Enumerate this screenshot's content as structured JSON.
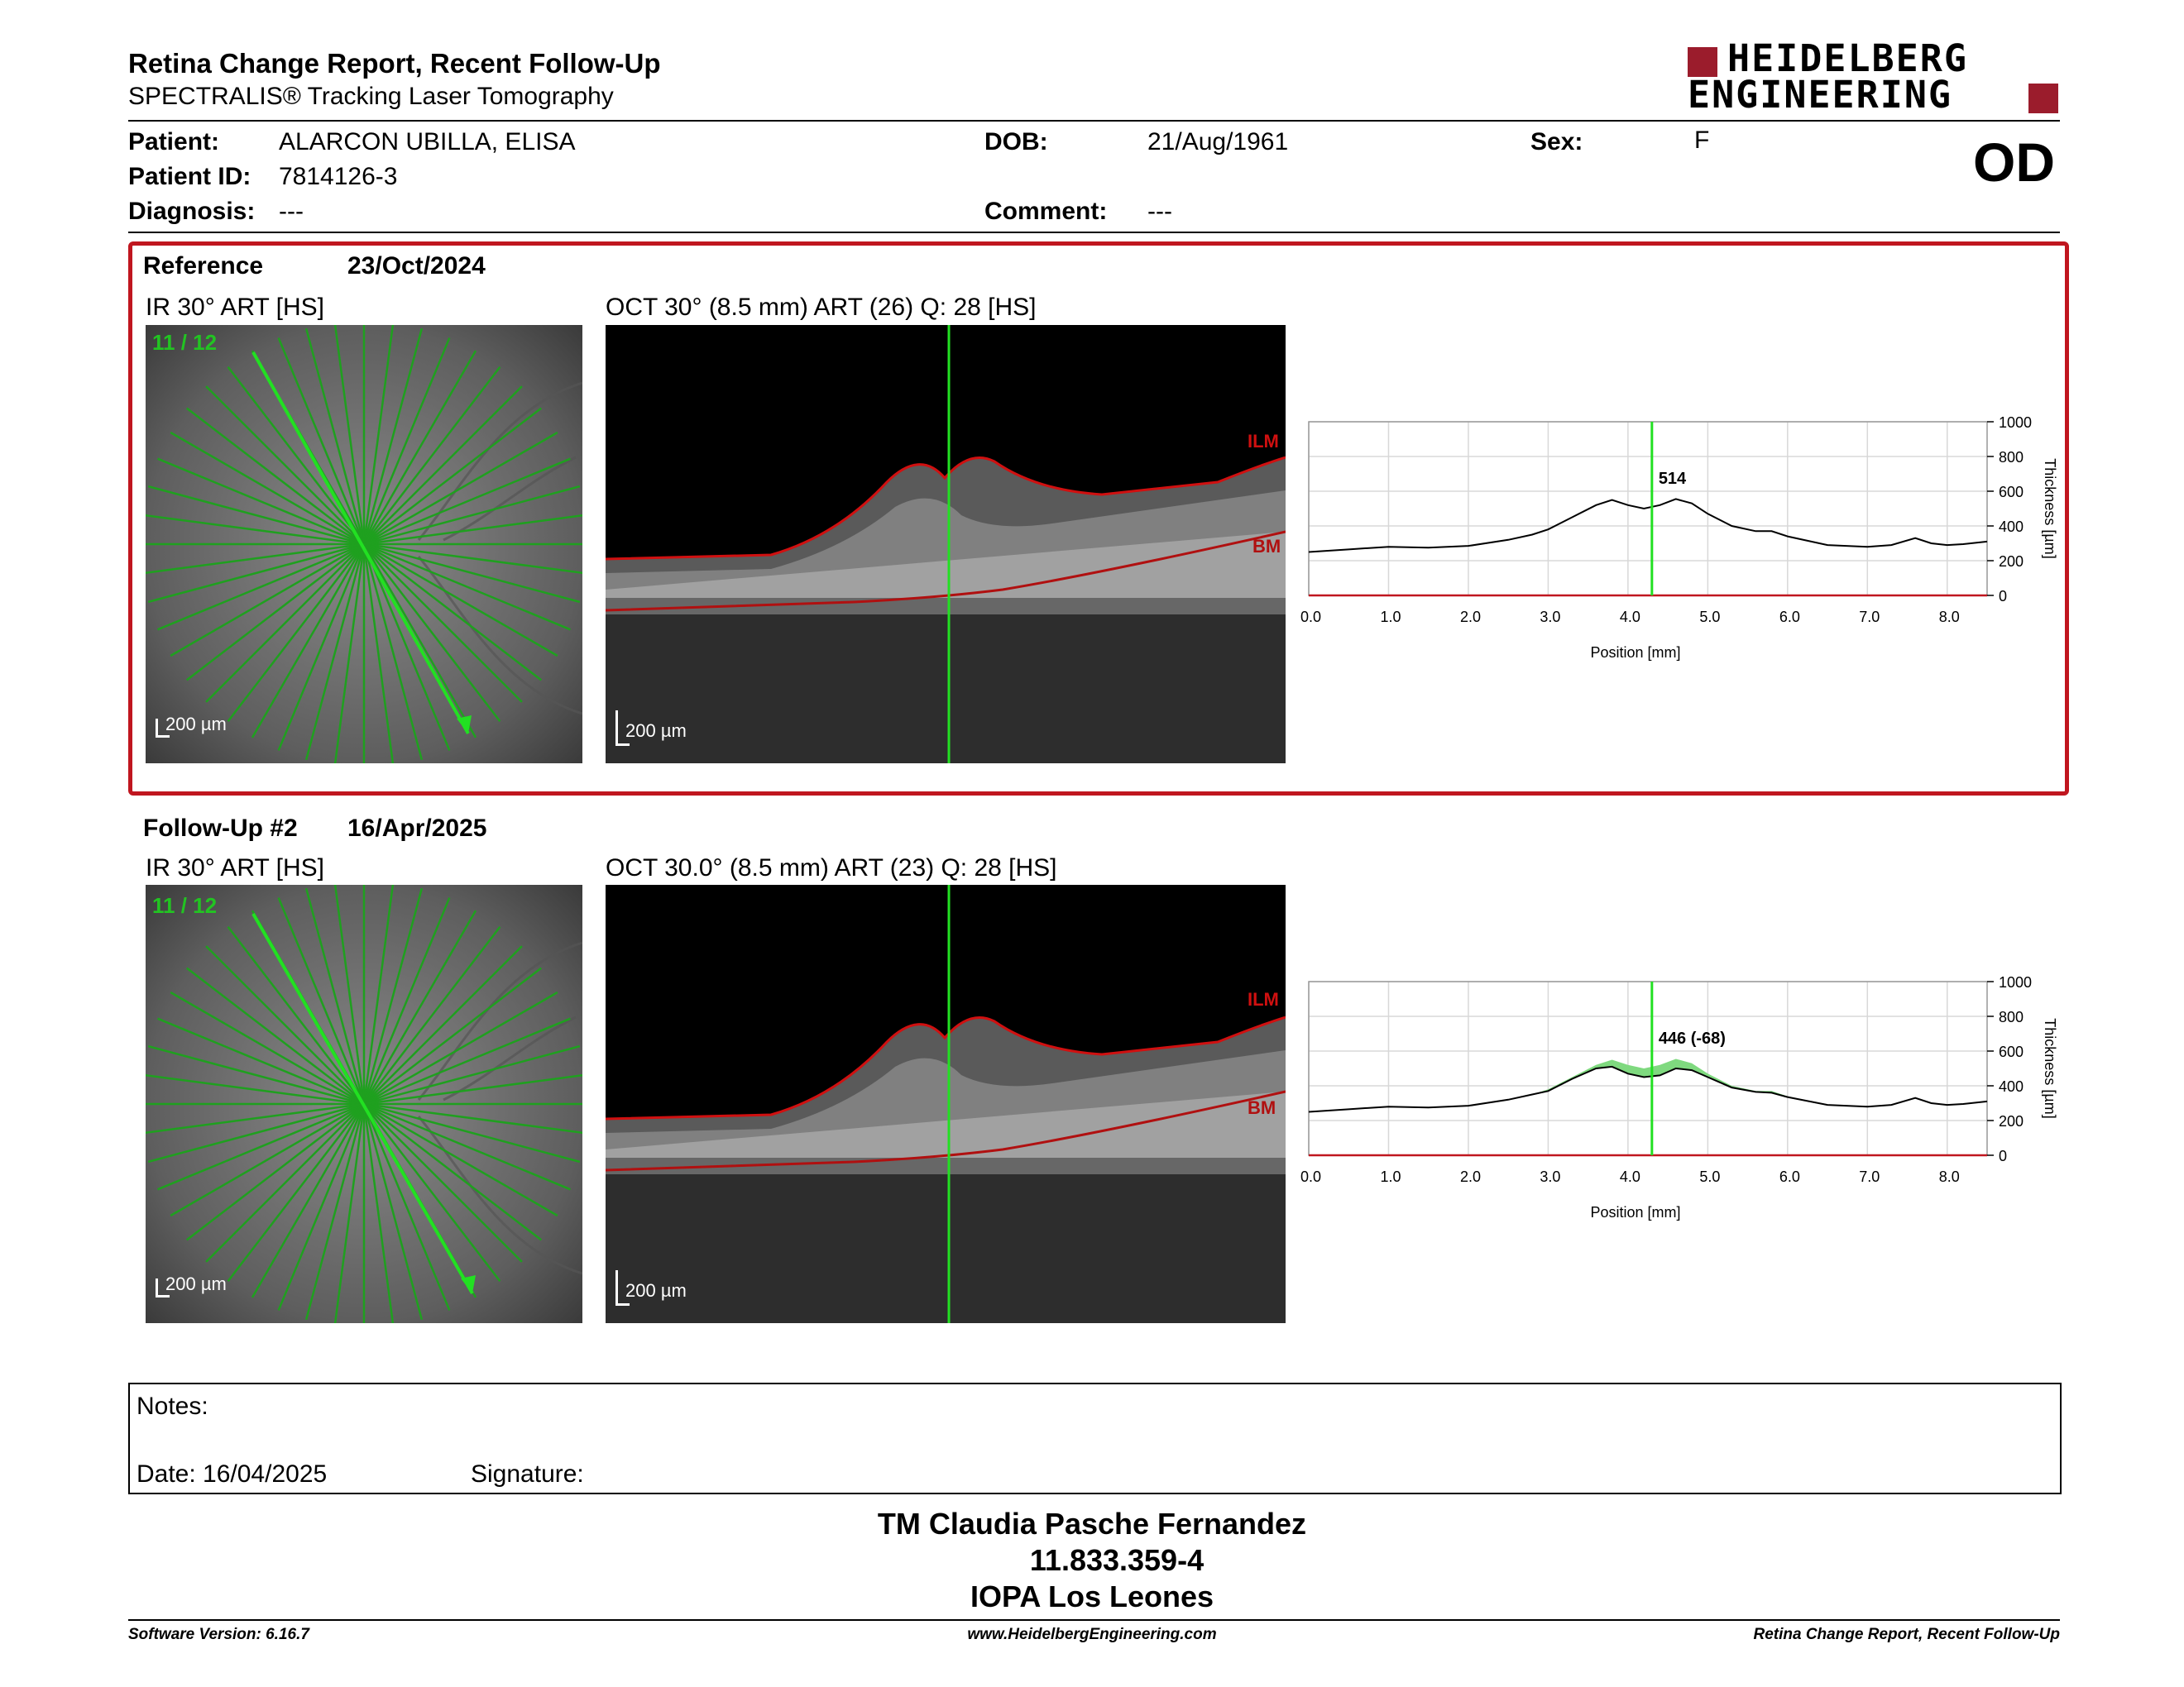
{
  "header": {
    "title": "Retina Change Report, Recent Follow-Up",
    "subtitle": "SPECTRALIS® Tracking Laser Tomography",
    "logo_line1": "HEIDELBERG",
    "logo_line2": "ENGINEERING",
    "eye": "OD"
  },
  "patient": {
    "patient_label": "Patient:",
    "patient_value": "ALARCON UBILLA, ELISA",
    "id_label": "Patient ID:",
    "id_value": "7814126-3",
    "diag_label": "Diagnosis:",
    "diag_value": "---",
    "dob_label": "DOB:",
    "dob_value": "21/Aug/1961",
    "comment_label": "Comment:",
    "comment_value": "---",
    "sex_label": "Sex:",
    "sex_value": "F"
  },
  "reference": {
    "label": "Reference",
    "date": "23/Oct/2024",
    "ir_caption": "IR 30° ART [HS]",
    "oct_caption": "OCT 30° (8.5 mm) ART (26) Q: 28 [HS]",
    "scan_index": "11 / 12",
    "scale_ir": "200 µm",
    "scale_oct": "200 µm",
    "ilm": "ILM",
    "bm": "BM",
    "marker_value": "514"
  },
  "followup": {
    "label": "Follow-Up #2",
    "date": "16/Apr/2025",
    "ir_caption": "IR 30° ART [HS]",
    "oct_caption": "OCT 30.0° (8.5 mm) ART (23) Q: 28 [HS]",
    "scan_index": "11 / 12",
    "scale_ir": "200 µm",
    "scale_oct": "200 µm",
    "ilm": "ILM",
    "bm": "BM",
    "marker_value": "446 (-68)"
  },
  "chart_data": [
    {
      "type": "line",
      "title": "",
      "xlabel": "Position [mm]",
      "ylabel": "Thickness [µm]",
      "xlim": [
        0,
        8.5
      ],
      "ylim": [
        0,
        1000
      ],
      "x_ticks": [
        "0.0",
        "1.0",
        "2.0",
        "3.0",
        "4.0",
        "5.0",
        "6.0",
        "7.0",
        "8.0"
      ],
      "y_ticks": [
        "0",
        "200",
        "400",
        "600",
        "800",
        "1000"
      ],
      "marker_x": 4.3,
      "grid": true,
      "series": [
        {
          "x": [
            0,
            0.5,
            1,
            1.5,
            2,
            2.5,
            2.8,
            3,
            3.3,
            3.6,
            3.8,
            4,
            4.2,
            4.4,
            4.6,
            4.8,
            5,
            5.3,
            5.6,
            5.8,
            6,
            6.5,
            7,
            7.3,
            7.6,
            7.8,
            8,
            8.2,
            8.5
          ],
          "values": [
            250,
            265,
            280,
            275,
            285,
            320,
            350,
            380,
            450,
            520,
            550,
            520,
            500,
            520,
            555,
            530,
            470,
            400,
            370,
            370,
            340,
            290,
            280,
            290,
            330,
            300,
            290,
            295,
            310
          ]
        }
      ]
    },
    {
      "type": "line",
      "title": "",
      "xlabel": "Position [mm]",
      "ylabel": "Thickness [µm]",
      "xlim": [
        0,
        8.5
      ],
      "ylim": [
        0,
        1000
      ],
      "x_ticks": [
        "0.0",
        "1.0",
        "2.0",
        "3.0",
        "4.0",
        "5.0",
        "6.0",
        "7.0",
        "8.0"
      ],
      "y_ticks": [
        "0",
        "200",
        "400",
        "600",
        "800",
        "1000"
      ],
      "marker_x": 4.3,
      "grid": true,
      "series": [
        {
          "x": [
            0,
            0.5,
            1,
            1.5,
            2,
            2.5,
            2.8,
            3,
            3.3,
            3.6,
            3.8,
            4,
            4.2,
            4.4,
            4.6,
            4.8,
            5,
            5.3,
            5.6,
            5.8,
            6,
            6.5,
            7,
            7.3,
            7.6,
            7.8,
            8,
            8.2,
            8.5
          ],
          "values": [
            250,
            265,
            280,
            275,
            285,
            320,
            350,
            370,
            440,
            500,
            510,
            470,
            450,
            460,
            500,
            490,
            450,
            390,
            365,
            360,
            335,
            290,
            280,
            290,
            330,
            300,
            290,
            295,
            310
          ]
        }
      ],
      "difference_fill": "#7fd97f"
    }
  ],
  "notes": {
    "notes_label": "Notes:",
    "date_label": "Date: 16/04/2025",
    "signature_label": "Signature:"
  },
  "signature_block": {
    "line1": "TM Claudia Pasche Fernandez",
    "line2": "11.833.359-4",
    "line3": "IOPA Los Leones"
  },
  "footer": {
    "software": "Software Version: 6.16.7",
    "website": "www.HeidelbergEngineering.com",
    "report": "Retina Change Report, Recent Follow-Up"
  },
  "colors": {
    "brand_red": "#9b1c2c",
    "frame_red": "#c0161f",
    "scan_green": "#22c422",
    "ilm_red": "#d01010"
  }
}
